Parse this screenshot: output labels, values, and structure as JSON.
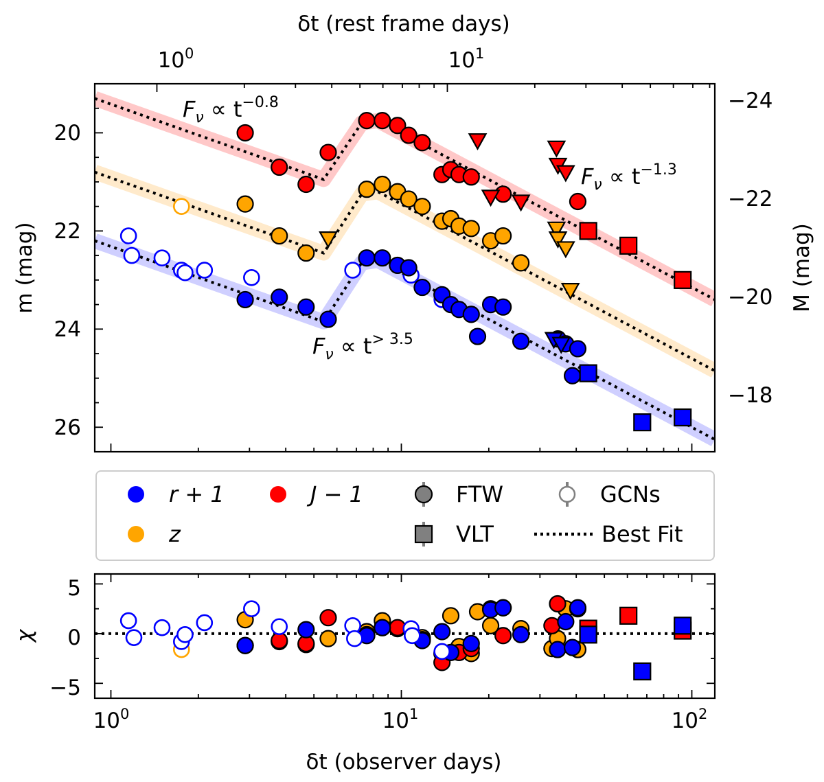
{
  "chart_data": [
    {
      "type": "scatter",
      "panel": "main",
      "xlabel_bottom": "δt (observer days)",
      "xlabel_top": "δt (rest frame days)",
      "ylabel_left": "m (mag)",
      "ylabel_right": "M (mag)",
      "x_scale": "log",
      "xlim": [
        0.88,
        120
      ],
      "ylim_left": [
        26.5,
        19.0
      ],
      "ylim_right": [
        -17.0,
        -24.5
      ],
      "ytick_labels_left": [
        "20",
        "22",
        "24",
        "26"
      ],
      "ytick_labels_right": [
        "−24",
        "−22",
        "−20",
        "−18"
      ],
      "xtick_labels_top": [
        "10",
        "10"
      ],
      "xtick_exponents_top": [
        "0",
        "1"
      ],
      "annotations": [
        {
          "base": "F",
          "sub": "ν",
          "rel": " ∝ t",
          "sup": "−0.8"
        },
        {
          "base": "F",
          "sub": "ν",
          "rel": " ∝ t",
          "sup": "−1.3"
        },
        {
          "base": "F",
          "sub": "ν",
          "rel": " ∝ t",
          "sup": "> 3.5"
        }
      ],
      "series": [
        {
          "name": "J − 1",
          "color": "#ff0000",
          "band_color": "#ff9a9a",
          "ftw": [
            [
              2.9,
              20.0
            ],
            [
              3.8,
              20.7
            ],
            [
              4.7,
              21.05
            ],
            [
              5.6,
              20.4
            ],
            [
              7.6,
              19.75
            ],
            [
              8.6,
              19.75
            ],
            [
              9.7,
              19.85
            ],
            [
              10.6,
              20.05
            ],
            [
              11.8,
              20.2
            ],
            [
              13.8,
              20.85
            ],
            [
              14.8,
              20.75
            ],
            [
              15.8,
              20.85
            ],
            [
              17.4,
              20.9
            ],
            [
              22.4,
              21.25
            ],
            [
              40.5,
              21.4
            ]
          ],
          "upper_limits": [
            [
              18.3,
              20.15
            ],
            [
              20.3,
              21.3
            ],
            [
              25.8,
              21.4
            ],
            [
              34.2,
              20.3
            ],
            [
              34.6,
              20.65
            ],
            [
              36.8,
              20.8
            ]
          ],
          "vlt": [
            [
              44.0,
              22.0
            ],
            [
              60.5,
              22.3
            ],
            [
              93.0,
              23.0
            ]
          ],
          "model": [
            [
              0.88,
              19.3
            ],
            [
              5.4,
              20.95
            ],
            [
              7.3,
              19.8
            ],
            [
              8.3,
              19.75
            ],
            [
              120,
              23.4
            ]
          ],
          "residual_ftw": [
            [
              2.9,
              -1.2
            ],
            [
              3.8,
              -0.7
            ],
            [
              4.7,
              -1.0
            ],
            [
              5.6,
              1.6
            ],
            [
              7.6,
              -0.1
            ],
            [
              8.6,
              0.6
            ],
            [
              9.7,
              0.6
            ],
            [
              11.8,
              -0.6
            ],
            [
              13.8,
              -2.9
            ],
            [
              15.8,
              -1.9
            ],
            [
              17.4,
              -1.5
            ],
            [
              20.3,
              2.5
            ],
            [
              22.4,
              -0.2
            ],
            [
              33.0,
              0.8
            ],
            [
              34.5,
              3.0
            ],
            [
              40.5,
              2.5
            ]
          ],
          "residual_vlt": [
            [
              44.0,
              0.5
            ],
            [
              60.5,
              1.8
            ],
            [
              93.0,
              0.3
            ]
          ]
        },
        {
          "name": "z",
          "color": "#ffa500",
          "band_color": "#ffd9a0",
          "ftw": [
            [
              2.9,
              21.45
            ],
            [
              3.8,
              22.1
            ],
            [
              4.7,
              22.45
            ],
            [
              7.6,
              21.15
            ],
            [
              8.6,
              21.05
            ],
            [
              9.7,
              21.2
            ],
            [
              10.6,
              21.35
            ],
            [
              11.8,
              21.5
            ],
            [
              13.8,
              21.8
            ],
            [
              14.8,
              21.75
            ],
            [
              15.8,
              21.9
            ],
            [
              17.4,
              21.95
            ],
            [
              20.3,
              22.2
            ],
            [
              22.4,
              22.1
            ],
            [
              25.8,
              22.65
            ]
          ],
          "gcn": [
            [
              1.75,
              21.5
            ]
          ],
          "upper_limits": [
            [
              5.6,
              22.15
            ],
            [
              34.2,
              21.95
            ],
            [
              34.6,
              22.15
            ],
            [
              36.8,
              22.35
            ],
            [
              38.2,
              23.2
            ]
          ],
          "model": [
            [
              0.88,
              20.8
            ],
            [
              5.4,
              22.45
            ],
            [
              7.3,
              21.25
            ],
            [
              8.3,
              21.2
            ],
            [
              120,
              24.85
            ]
          ],
          "residual_ftw": [
            [
              2.9,
              1.4
            ],
            [
              3.8,
              -0.8
            ],
            [
              4.7,
              -1.1
            ],
            [
              5.6,
              -0.5
            ],
            [
              7.6,
              0.2
            ],
            [
              8.6,
              1.3
            ],
            [
              9.7,
              0.5
            ],
            [
              11.8,
              -0.4
            ],
            [
              13.8,
              -2.0
            ],
            [
              14.8,
              1.8
            ],
            [
              15.8,
              -1.3
            ],
            [
              17.4,
              -2.0
            ],
            [
              18.3,
              2.2
            ],
            [
              20.3,
              0.8
            ],
            [
              22.4,
              2.6
            ],
            [
              25.8,
              0.5
            ],
            [
              33.0,
              -1.5
            ],
            [
              34.5,
              -0.5
            ],
            [
              36.8,
              2.5
            ],
            [
              40.5,
              -1.6
            ]
          ],
          "residual_gcn": [
            [
              1.75,
              -1.6
            ]
          ]
        },
        {
          "name": "r + 1",
          "color": "#0000ff",
          "band_color": "#a8a8ff",
          "ftw": [
            [
              2.9,
              23.4
            ],
            [
              3.8,
              23.35
            ],
            [
              4.7,
              23.55
            ],
            [
              5.6,
              23.8
            ],
            [
              7.6,
              22.55
            ],
            [
              8.6,
              22.55
            ],
            [
              9.7,
              22.7
            ],
            [
              10.6,
              22.75
            ],
            [
              11.8,
              23.15
            ],
            [
              13.8,
              23.3
            ],
            [
              14.8,
              23.5
            ],
            [
              15.8,
              23.6
            ],
            [
              17.4,
              23.7
            ],
            [
              18.3,
              24.15
            ],
            [
              20.3,
              23.5
            ],
            [
              22.4,
              23.55
            ],
            [
              25.8,
              24.25
            ],
            [
              34.6,
              24.2
            ],
            [
              36.8,
              24.3
            ],
            [
              40.5,
              24.4
            ],
            [
              38.8,
              24.95
            ]
          ],
          "gcn": [
            [
              1.15,
              22.1
            ],
            [
              1.18,
              22.5
            ],
            [
              1.5,
              22.55
            ],
            [
              1.75,
              22.8
            ],
            [
              1.8,
              22.85
            ],
            [
              2.1,
              22.8
            ],
            [
              3.05,
              22.95
            ],
            [
              6.8,
              22.8
            ],
            [
              10.8,
              22.9
            ],
            [
              13.8,
              23.4
            ]
          ],
          "upper_limits": [
            [
              33.5,
              24.2
            ],
            [
              35.5,
              24.3
            ]
          ],
          "vlt": [
            [
              44.0,
              24.9
            ],
            [
              67.5,
              25.9
            ],
            [
              93.0,
              25.8
            ]
          ],
          "model": [
            [
              0.88,
              22.2
            ],
            [
              5.4,
              23.85
            ],
            [
              7.3,
              22.65
            ],
            [
              8.3,
              22.6
            ],
            [
              120,
              26.25
            ]
          ],
          "residual_ftw": [
            [
              2.9,
              -1.2
            ],
            [
              4.7,
              0.4
            ],
            [
              7.6,
              -0.2
            ],
            [
              8.6,
              0.6
            ],
            [
              11.8,
              -0.7
            ],
            [
              13.8,
              0.2
            ],
            [
              14.8,
              -1.9
            ],
            [
              17.4,
              -1.0
            ],
            [
              20.3,
              2.4
            ],
            [
              22.4,
              2.6
            ],
            [
              25.8,
              -0.1
            ],
            [
              34.5,
              -1.6
            ],
            [
              36.8,
              1.2
            ],
            [
              40.5,
              2.6
            ],
            [
              38.8,
              -1.4
            ]
          ],
          "residual_gcn": [
            [
              1.15,
              1.3
            ],
            [
              1.2,
              -0.4
            ],
            [
              1.5,
              0.6
            ],
            [
              1.75,
              -0.8
            ],
            [
              1.8,
              -0.1
            ],
            [
              2.1,
              1.1
            ],
            [
              3.05,
              2.5
            ],
            [
              3.8,
              0.7
            ],
            [
              6.8,
              0.8
            ],
            [
              6.9,
              -0.5
            ],
            [
              10.8,
              0.5
            ],
            [
              10.9,
              -0.2
            ],
            [
              13.8,
              -1.8
            ]
          ],
          "residual_vlt": [
            [
              44.0,
              -0.1
            ],
            [
              67.5,
              -3.8
            ],
            [
              93.0,
              0.8
            ]
          ]
        }
      ]
    },
    {
      "type": "scatter",
      "panel": "residual",
      "xlabel": "δt (observer days)",
      "ylabel": "χ",
      "x_scale": "log",
      "xlim": [
        0.88,
        120
      ],
      "ylim": [
        -6.5,
        6.0
      ],
      "ytick_labels": [
        "5",
        "0",
        "−5"
      ],
      "xtick_labels": [
        "10",
        "10",
        "10"
      ],
      "xtick_exponents": [
        "0",
        "1",
        "2"
      ],
      "reference_line": 0
    }
  ],
  "legend": {
    "entries": [
      {
        "label": "r + 1",
        "kind": "color",
        "color": "#0000ff"
      },
      {
        "label": "J − 1",
        "kind": "color",
        "color": "#ff0000"
      },
      {
        "label": "FTW",
        "kind": "marker-circle"
      },
      {
        "label": "GCNs",
        "kind": "marker-open-circle"
      },
      {
        "label": "z",
        "kind": "color",
        "color": "#ffa500"
      },
      {
        "label": "VLT",
        "kind": "marker-square"
      },
      {
        "label": "Best Fit",
        "kind": "dotted-line"
      }
    ]
  }
}
